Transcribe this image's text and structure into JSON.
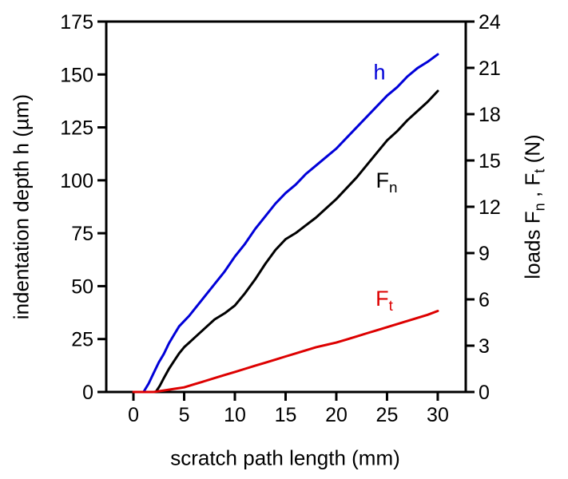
{
  "figure": {
    "background": "#ffffff"
  },
  "axes": {
    "x": {
      "label": "scratch path length (mm)",
      "ticks": [
        0,
        5,
        10,
        15,
        20,
        25,
        30
      ],
      "min": -2.68,
      "max": 32.76
    },
    "y_left": {
      "label": "indentation depth  h  (µm)",
      "ticks": [
        0,
        25,
        50,
        75,
        100,
        125,
        150,
        175
      ],
      "min": 0,
      "max": 175
    },
    "y_right": {
      "label_pre": "loads  F",
      "label_sub1": "n",
      "label_mid": " , F",
      "label_sub2": "t",
      "label_post": "  (N)",
      "ticks": [
        0,
        3,
        6,
        9,
        12,
        15,
        18,
        21,
        24
      ],
      "min": 0,
      "max": 24
    }
  },
  "chart_data": {
    "type": "line",
    "title": "",
    "xlabel": "scratch path length (mm)",
    "ylabel_left": "indentation depth h (µm)",
    "ylabel_right": "loads Fn , Ft (N)",
    "x_range": [
      0,
      30
    ],
    "y_left_range": [
      0,
      175
    ],
    "y_right_range": [
      0,
      24
    ],
    "grid": false,
    "legend_position": "inline-labels",
    "series": [
      {
        "name": "h",
        "axis": "left",
        "color": "#0000d8",
        "units": "µm",
        "points": [
          [
            0,
            0
          ],
          [
            1,
            0
          ],
          [
            1.5,
            4
          ],
          [
            2,
            9
          ],
          [
            2.5,
            14
          ],
          [
            3,
            18
          ],
          [
            3.5,
            23
          ],
          [
            4,
            27
          ],
          [
            4.5,
            31
          ],
          [
            5,
            33.5
          ],
          [
            5.5,
            36
          ],
          [
            6,
            39
          ],
          [
            7,
            45
          ],
          [
            8,
            51
          ],
          [
            9,
            57
          ],
          [
            10,
            64
          ],
          [
            11,
            70
          ],
          [
            12,
            77
          ],
          [
            13,
            83
          ],
          [
            14,
            89
          ],
          [
            15,
            94
          ],
          [
            16,
            98
          ],
          [
            17,
            103
          ],
          [
            18,
            107
          ],
          [
            19,
            111
          ],
          [
            20,
            115
          ],
          [
            21,
            120
          ],
          [
            22,
            125
          ],
          [
            23,
            130
          ],
          [
            24,
            135
          ],
          [
            25,
            140
          ],
          [
            26,
            144
          ],
          [
            27,
            149
          ],
          [
            28,
            153
          ],
          [
            29,
            156
          ],
          [
            30,
            159.5
          ]
        ]
      },
      {
        "name": "Fn",
        "axis": "right",
        "color": "#000000",
        "units": "N",
        "points": [
          [
            0,
            0
          ],
          [
            2.2,
            0
          ],
          [
            2.6,
            0.4
          ],
          [
            3,
            0.9
          ],
          [
            3.5,
            1.5
          ],
          [
            4,
            2.0
          ],
          [
            4.5,
            2.5
          ],
          [
            5,
            2.9
          ],
          [
            5.5,
            3.2
          ],
          [
            6,
            3.5
          ],
          [
            7,
            4.1
          ],
          [
            8,
            4.7
          ],
          [
            9,
            5.1
          ],
          [
            10,
            5.6
          ],
          [
            11,
            6.4
          ],
          [
            12,
            7.3
          ],
          [
            13,
            8.3
          ],
          [
            14,
            9.2
          ],
          [
            15,
            9.9
          ],
          [
            16,
            10.3
          ],
          [
            17,
            10.8
          ],
          [
            18,
            11.3
          ],
          [
            19,
            11.9
          ],
          [
            20,
            12.5
          ],
          [
            21,
            13.2
          ],
          [
            22,
            13.9
          ],
          [
            23,
            14.7
          ],
          [
            24,
            15.5
          ],
          [
            25,
            16.3
          ],
          [
            26,
            16.9
          ],
          [
            27,
            17.6
          ],
          [
            28,
            18.2
          ],
          [
            29,
            18.8
          ],
          [
            30,
            19.5
          ]
        ]
      },
      {
        "name": "Ft",
        "axis": "right",
        "color": "#dd0000",
        "units": "N",
        "points": [
          [
            0,
            0
          ],
          [
            2,
            0
          ],
          [
            3,
            0.1
          ],
          [
            4,
            0.2
          ],
          [
            5,
            0.3
          ],
          [
            6,
            0.5
          ],
          [
            7,
            0.7
          ],
          [
            8,
            0.9
          ],
          [
            9,
            1.1
          ],
          [
            10,
            1.3
          ],
          [
            11,
            1.5
          ],
          [
            12,
            1.7
          ],
          [
            13,
            1.9
          ],
          [
            14,
            2.1
          ],
          [
            15,
            2.3
          ],
          [
            16,
            2.5
          ],
          [
            17,
            2.7
          ],
          [
            18,
            2.9
          ],
          [
            19,
            3.05
          ],
          [
            20,
            3.2
          ],
          [
            21,
            3.4
          ],
          [
            22,
            3.6
          ],
          [
            23,
            3.8
          ],
          [
            24,
            4.0
          ],
          [
            25,
            4.2
          ],
          [
            26,
            4.4
          ],
          [
            27,
            4.6
          ],
          [
            28,
            4.8
          ],
          [
            29,
            5.0
          ],
          [
            30,
            5.25
          ]
        ]
      }
    ],
    "annotations": [
      {
        "text": "h",
        "sub": "",
        "color": "#0000d8"
      },
      {
        "text": "F",
        "sub": "n",
        "color": "#000000"
      },
      {
        "text": "F",
        "sub": "t",
        "color": "#dd0000"
      }
    ],
    "frame_color": "#000000"
  }
}
